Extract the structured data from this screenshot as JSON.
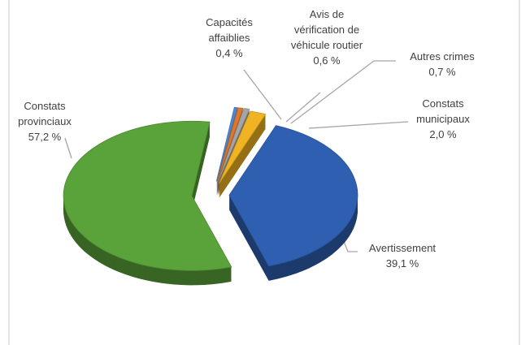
{
  "chart_data": {
    "type": "pie",
    "categories": [
      "Capacités affaiblies",
      "Avis de vérification de véhicule routier",
      "Autres crimes",
      "Constats municipaux",
      "Avertissement",
      "Constats provinciaux"
    ],
    "values": [
      0.4,
      0.6,
      0.7,
      2.0,
      39.1,
      57.2
    ],
    "value_labels": [
      "0,4 %",
      "0,6 %",
      "0,7 %",
      "2,0 %",
      "39,1 %",
      "57,2 %"
    ],
    "colors": [
      "#4f86cf",
      "#e0782c",
      "#a5a5a5",
      "#f0b323",
      "#2e5fb0",
      "#5aa23a"
    ]
  }
}
